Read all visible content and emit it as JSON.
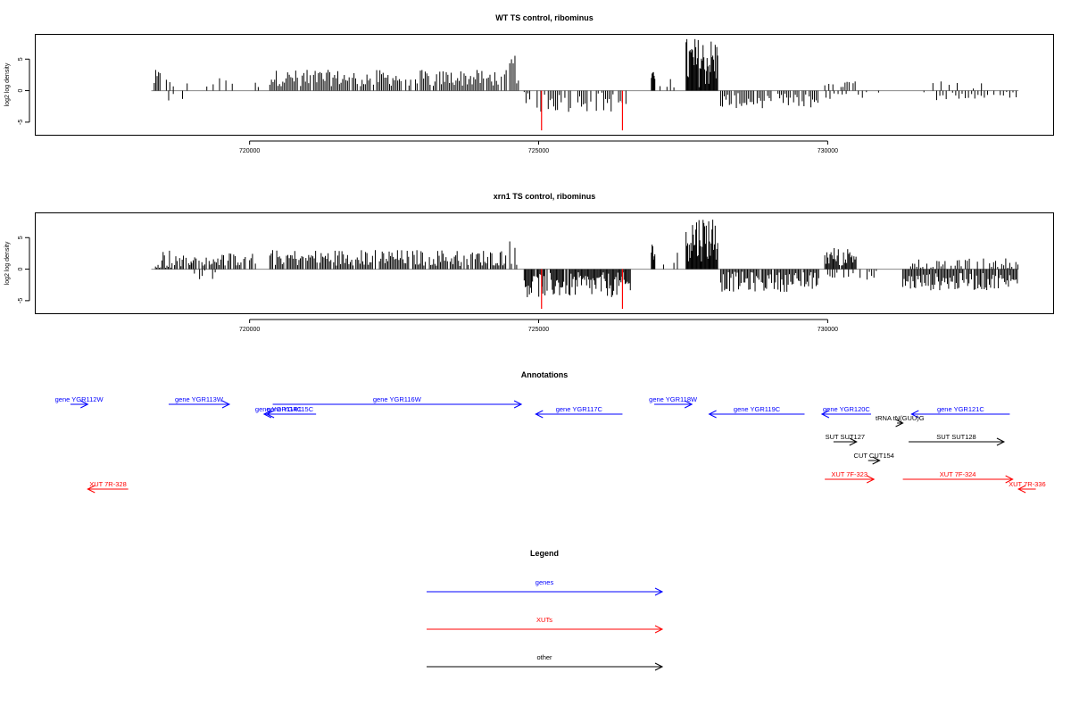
{
  "chart_data": [
    {
      "type": "bar",
      "title": "WT TS control, ribominus",
      "ylabel": "log2 log density",
      "xlim": [
        716300,
        733900
      ],
      "ylim": [
        -7,
        9
      ],
      "yticks": [
        -5,
        0,
        5
      ],
      "xticks": [
        720000,
        725000,
        730000
      ],
      "grid": false,
      "baseline_span": [
        718300,
        733300
      ],
      "red_spikes": [
        {
          "x": 725050,
          "y": -6.3
        },
        {
          "x": 726450,
          "y": -6.3
        }
      ],
      "segments": [
        {
          "start": 718350,
          "end": 718450,
          "step": 25,
          "base": 1.8,
          "amp": 1.5,
          "fill": 0.8
        },
        {
          "start": 718500,
          "end": 719000,
          "step": 60,
          "base": 1.2,
          "amp": 0.9,
          "fill": 0.5
        },
        {
          "start": 718600,
          "end": 718900,
          "step": 80,
          "base": -1.2,
          "amp": 0.8,
          "fill": 0.5
        },
        {
          "start": 719150,
          "end": 719800,
          "step": 110,
          "base": 1.2,
          "amp": 0.8,
          "fill": 0.55
        },
        {
          "start": 720050,
          "end": 720150,
          "step": 25,
          "base": 1.2,
          "amp": 0.8,
          "fill": 0.8
        },
        {
          "start": 720350,
          "end": 724450,
          "step": 28,
          "base": 2.0,
          "amp": 1.3,
          "fill": 0.85
        },
        {
          "start": 724500,
          "end": 724650,
          "step": 30,
          "base": 3.5,
          "amp": 2.5,
          "fill": 0.9
        },
        {
          "start": 724750,
          "end": 726600,
          "step": 32,
          "base": -1.8,
          "amp": 1.6,
          "fill": 0.6
        },
        {
          "start": 726950,
          "end": 727020,
          "step": 12,
          "base": 2.2,
          "amp": 0.8,
          "fill": 1.0
        },
        {
          "start": 727100,
          "end": 727450,
          "step": 60,
          "base": 1.3,
          "amp": 0.8,
          "fill": 0.6
        },
        {
          "start": 727550,
          "end": 728100,
          "step": 14,
          "base": 4.5,
          "amp": 4.0,
          "fill": 1.0
        },
        {
          "start": 728150,
          "end": 729850,
          "step": 30,
          "base": -1.6,
          "amp": 1.2,
          "fill": 0.9
        },
        {
          "start": 729950,
          "end": 730500,
          "step": 35,
          "base": 0.8,
          "amp": 0.7,
          "fill": 0.7
        },
        {
          "start": 729900,
          "end": 730900,
          "step": 70,
          "base": -0.8,
          "amp": 0.6,
          "fill": 0.5
        },
        {
          "start": 731500,
          "end": 733300,
          "step": 55,
          "base": -0.8,
          "amp": 0.7,
          "fill": 0.6
        },
        {
          "start": 731750,
          "end": 733000,
          "step": 70,
          "base": 1.0,
          "amp": 1.2,
          "fill": 0.35
        }
      ]
    },
    {
      "type": "bar",
      "title": "xrn1 TS control, ribominus",
      "ylabel": "log2 log density",
      "xlim": [
        716300,
        733900
      ],
      "ylim": [
        -7,
        9
      ],
      "yticks": [
        -5,
        0,
        5
      ],
      "xticks": [
        720000,
        725000,
        730000
      ],
      "grid": false,
      "baseline_span": [
        718300,
        733300
      ],
      "red_spikes": [
        {
          "x": 725050,
          "y": -6.3
        },
        {
          "x": 726450,
          "y": -6.3
        }
      ],
      "segments": [
        {
          "start": 718350,
          "end": 719000,
          "step": 22,
          "base": 1.6,
          "amp": 1.6,
          "fill": 0.85
        },
        {
          "start": 719000,
          "end": 719500,
          "step": 45,
          "base": -1.0,
          "amp": 0.9,
          "fill": 0.5
        },
        {
          "start": 719000,
          "end": 720100,
          "step": 25,
          "base": 1.5,
          "amp": 1.0,
          "fill": 0.8
        },
        {
          "start": 720350,
          "end": 724450,
          "step": 24,
          "base": 1.8,
          "amp": 1.3,
          "fill": 0.88
        },
        {
          "start": 724500,
          "end": 724650,
          "step": 30,
          "base": 3.5,
          "amp": 3.0,
          "fill": 0.9
        },
        {
          "start": 724750,
          "end": 726600,
          "step": 18,
          "base": -2.5,
          "amp": 2.0,
          "fill": 0.95
        },
        {
          "start": 726950,
          "end": 727020,
          "step": 12,
          "base": 3.0,
          "amp": 1.5,
          "fill": 1.0
        },
        {
          "start": 727100,
          "end": 727450,
          "step": 60,
          "base": 1.6,
          "amp": 1.2,
          "fill": 0.6
        },
        {
          "start": 727550,
          "end": 728100,
          "step": 14,
          "base": 5.0,
          "amp": 3.8,
          "fill": 1.0
        },
        {
          "start": 728150,
          "end": 729850,
          "step": 22,
          "base": -2.0,
          "amp": 1.6,
          "fill": 0.95
        },
        {
          "start": 729950,
          "end": 730500,
          "step": 18,
          "base": 2.0,
          "amp": 1.5,
          "fill": 0.95
        },
        {
          "start": 730000,
          "end": 730900,
          "step": 40,
          "base": -1.0,
          "amp": 0.8,
          "fill": 0.7
        },
        {
          "start": 731300,
          "end": 733300,
          "step": 22,
          "base": -2.0,
          "amp": 1.4,
          "fill": 0.9
        },
        {
          "start": 731400,
          "end": 733300,
          "step": 35,
          "base": 0.8,
          "amp": 0.9,
          "fill": 0.6
        }
      ]
    }
  ],
  "annotations": {
    "title": "Annotations",
    "items": [
      {
        "label": "gene YGR112W",
        "start": 716900,
        "end": 717200,
        "strand": "+",
        "row": 0,
        "color": "#0000ff"
      },
      {
        "label": "gene YGR113W",
        "start": 718600,
        "end": 719650,
        "strand": "+",
        "row": 0,
        "color": "#0000ff"
      },
      {
        "label": "gene YGR114C",
        "start": 720300,
        "end": 720700,
        "strand": "-",
        "row": 1,
        "color": "#0000ff"
      },
      {
        "label": "gene YGR115C",
        "start": 720250,
        "end": 721150,
        "strand": "-",
        "row": 1,
        "color": "#0000ff"
      },
      {
        "label": "gene YGR116W",
        "start": 720400,
        "end": 724700,
        "strand": "+",
        "row": 0,
        "color": "#0000ff"
      },
      {
        "label": "gene YGR117C",
        "start": 724950,
        "end": 726450,
        "strand": "-",
        "row": 1,
        "color": "#0000ff"
      },
      {
        "label": "gene YGR118W",
        "start": 727000,
        "end": 727650,
        "strand": "+",
        "row": 0,
        "color": "#0000ff"
      },
      {
        "label": "gene YGR119C",
        "start": 727950,
        "end": 729600,
        "strand": "-",
        "row": 1,
        "color": "#0000ff"
      },
      {
        "label": "gene YGR120C",
        "start": 729900,
        "end": 730750,
        "strand": "-",
        "row": 1,
        "color": "#0000ff"
      },
      {
        "label": "gene YGR121C",
        "start": 731450,
        "end": 733150,
        "strand": "-",
        "row": 1,
        "color": "#0000ff"
      },
      {
        "label": "tRNA tN(GUU)G",
        "start": 731200,
        "end": 731300,
        "strand": "+",
        "row": 2,
        "color": "#000000"
      },
      {
        "label": "SUT SUT127",
        "start": 730100,
        "end": 730500,
        "strand": "+",
        "row": 3,
        "color": "#000000"
      },
      {
        "label": "SUT SUT128",
        "start": 731400,
        "end": 733050,
        "strand": "+",
        "row": 3,
        "color": "#000000"
      },
      {
        "label": "CUT CUT154",
        "start": 730700,
        "end": 730900,
        "strand": "+",
        "row": 4,
        "color": "#000000"
      },
      {
        "label": "XUT 7F-323",
        "start": 729950,
        "end": 730800,
        "strand": "+",
        "row": 5,
        "color": "#ff0000"
      },
      {
        "label": "XUT 7F-324",
        "start": 731300,
        "end": 733200,
        "strand": "+",
        "row": 5,
        "color": "#ff0000"
      },
      {
        "label": "XUT 7R-328",
        "start": 717200,
        "end": 717900,
        "strand": "-",
        "row": 6,
        "color": "#ff0000"
      },
      {
        "label": "XUT 7R-336",
        "start": 733300,
        "end": 733600,
        "strand": "-",
        "row": 6,
        "color": "#ff0000"
      }
    ]
  },
  "legend": {
    "title": "Legend",
    "items": [
      {
        "label": "genes",
        "color": "#0000ff"
      },
      {
        "label": "XUTs",
        "color": "#ff0000"
      },
      {
        "label": "other",
        "color": "#000000"
      }
    ]
  },
  "colors": {
    "signal": "#000000",
    "red_spike": "#ff0000",
    "baseline": "#888888"
  }
}
